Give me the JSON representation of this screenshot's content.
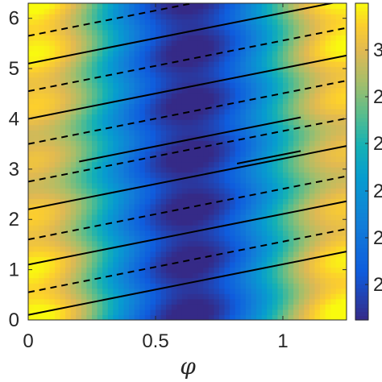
{
  "chart_data": {
    "type": "heatmap",
    "xlabel": "φ",
    "ylabel": "",
    "xlim": [
      0,
      1.25
    ],
    "ylim": [
      0,
      6.3
    ],
    "x_ticks": [
      {
        "value": 0,
        "label": "0"
      },
      {
        "value": 0.5,
        "label": "0.5"
      },
      {
        "value": 1,
        "label": "1"
      }
    ],
    "y_ticks": [
      {
        "value": 0,
        "label": "0"
      },
      {
        "value": 1,
        "label": "1"
      },
      {
        "value": 2,
        "label": "2"
      },
      {
        "value": 3,
        "label": "3"
      },
      {
        "value": 4,
        "label": "4"
      },
      {
        "value": 5,
        "label": "5"
      },
      {
        "value": 6,
        "label": "6"
      }
    ],
    "colorbar_tick_labels": [
      "3",
      "2",
      "2",
      "2",
      "2",
      "2"
    ],
    "colormap": "parula",
    "solid_lines": [
      {
        "x": [
          0,
          1.25
        ],
        "y": [
          0.1,
          1.36
        ]
      },
      {
        "x": [
          0,
          1.25
        ],
        "y": [
          1.1,
          2.36
        ]
      },
      {
        "x": [
          0,
          1.25
        ],
        "y": [
          2.2,
          3.46
        ]
      },
      {
        "x": [
          0.2,
          1.07
        ],
        "y": [
          3.15,
          4.03
        ]
      },
      {
        "x": [
          0.82,
          1.07
        ],
        "y": [
          3.11,
          3.36
        ]
      },
      {
        "x": [
          0,
          1.25
        ],
        "y": [
          4.0,
          5.26
        ]
      },
      {
        "x": [
          0,
          1.25
        ],
        "y": [
          5.1,
          6.36
        ]
      }
    ],
    "dashed_lines": [
      {
        "x": [
          0,
          1.25
        ],
        "y": [
          0.55,
          1.81
        ]
      },
      {
        "x": [
          0,
          1.25
        ],
        "y": [
          1.6,
          2.86
        ]
      },
      {
        "x": [
          0,
          1.25
        ],
        "y": [
          2.75,
          4.01
        ]
      },
      {
        "x": [
          0,
          1.25
        ],
        "y": [
          3.5,
          4.76
        ]
      },
      {
        "x": [
          0,
          1.25
        ],
        "y": [
          4.55,
          5.81
        ]
      },
      {
        "x": [
          0,
          1.25
        ],
        "y": [
          5.65,
          6.91
        ]
      }
    ]
  }
}
